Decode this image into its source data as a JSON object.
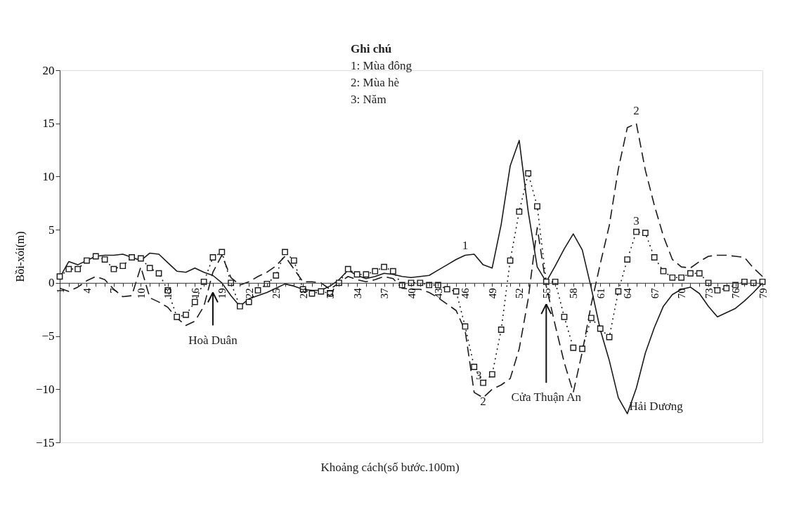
{
  "chart_data": {
    "type": "line",
    "xlabel": "Khoảng cách(số bước.100m)",
    "ylabel": "Bồi-xói(m)",
    "xlim": [
      1,
      79
    ],
    "ylim": [
      -15,
      20
    ],
    "yticks": [
      -15,
      -10,
      -5,
      0,
      5,
      10,
      15,
      20
    ],
    "xticks": [
      1,
      {
        "value": 2,
        "label": null
      },
      {
        "value": 3,
        "label": null
      },
      4,
      {
        "value": 5,
        "label": null
      },
      {
        "value": 6,
        "label": null
      },
      7,
      {
        "value": 8,
        "label": null
      },
      {
        "value": 9,
        "label": null
      },
      10,
      {
        "value": 11,
        "label": null
      },
      {
        "value": 12,
        "label": null
      },
      13,
      {
        "value": 14,
        "label": null
      },
      {
        "value": 15,
        "label": null
      },
      16,
      {
        "value": 17,
        "label": null
      },
      {
        "value": 18,
        "label": null
      },
      19,
      {
        "value": 20,
        "label": null
      },
      {
        "value": 21,
        "label": null
      },
      22,
      {
        "value": 23,
        "label": null
      },
      {
        "value": 24,
        "label": null
      },
      25,
      {
        "value": 26,
        "label": null
      },
      {
        "value": 27,
        "label": null
      },
      28,
      {
        "value": 29,
        "label": null
      },
      {
        "value": 30,
        "label": null
      },
      31,
      {
        "value": 32,
        "label": null
      },
      {
        "value": 33,
        "label": null
      },
      34,
      {
        "value": 35,
        "label": null
      },
      {
        "value": 36,
        "label": null
      },
      37,
      {
        "value": 38,
        "label": null
      },
      {
        "value": 39,
        "label": null
      },
      40,
      {
        "value": 41,
        "label": null
      },
      {
        "value": 42,
        "label": null
      },
      43,
      {
        "value": 44,
        "label": null
      },
      {
        "value": 45,
        "label": null
      },
      46,
      {
        "value": 47,
        "label": null
      },
      {
        "value": 48,
        "label": null
      },
      49,
      {
        "value": 50,
        "label": null
      },
      {
        "value": 51,
        "label": null
      },
      52,
      {
        "value": 53,
        "label": null
      },
      {
        "value": 54,
        "label": null
      },
      55,
      {
        "value": 56,
        "label": null
      },
      {
        "value": 57,
        "label": null
      },
      58,
      {
        "value": 59,
        "label": null
      },
      {
        "value": 60,
        "label": null
      },
      61,
      {
        "value": 62,
        "label": null
      },
      {
        "value": 63,
        "label": null
      },
      64,
      {
        "value": 65,
        "label": null
      },
      {
        "value": 66,
        "label": null
      },
      67,
      {
        "value": 68,
        "label": null
      },
      {
        "value": 69,
        "label": null
      },
      70,
      {
        "value": 71,
        "label": null
      },
      {
        "value": 72,
        "label": null
      },
      73,
      {
        "value": 74,
        "label": null
      },
      {
        "value": 75,
        "label": null
      },
      76,
      {
        "value": 77,
        "label": null
      },
      {
        "value": 78,
        "label": null
      },
      79
    ],
    "x": [
      1,
      2,
      3,
      4,
      5,
      6,
      7,
      8,
      9,
      10,
      11,
      12,
      13,
      14,
      15,
      16,
      17,
      18,
      19,
      20,
      21,
      22,
      23,
      24,
      25,
      26,
      27,
      28,
      29,
      30,
      31,
      32,
      33,
      34,
      35,
      36,
      37,
      38,
      39,
      40,
      41,
      42,
      43,
      44,
      45,
      46,
      47,
      48,
      49,
      50,
      51,
      52,
      53,
      54,
      55,
      56,
      57,
      58,
      59,
      60,
      61,
      62,
      63,
      64,
      65,
      66,
      67,
      68,
      69,
      70,
      71,
      72,
      73,
      74,
      75,
      76,
      77,
      78,
      79
    ],
    "series": [
      {
        "color": "#1a1a1a",
        "line_style": "solid",
        "values": [
          0.5,
          2.0,
          1.7,
          2.1,
          2.5,
          2.6,
          2.6,
          2.7,
          2.4,
          2.1,
          2.8,
          2.7,
          1.9,
          1.1,
          1.0,
          1.4,
          1.0,
          0.7,
          0.0,
          -1.2,
          -2.2,
          -1.5,
          -1.2,
          -0.9,
          -0.5,
          -0.1,
          -0.3,
          -0.6,
          -0.7,
          -0.7,
          -0.3,
          0.3,
          1.2,
          0.7,
          0.4,
          0.6,
          0.9,
          0.8,
          0.6,
          0.5,
          0.6,
          0.7,
          1.2,
          1.7,
          2.2,
          2.6,
          2.7,
          1.7,
          1.4,
          5.5,
          11.0,
          13.4,
          6.7,
          1.5,
          0.1,
          1.6,
          3.2,
          4.6,
          3.1,
          -0.5,
          -4.4,
          -7.3,
          -10.8,
          -12.3,
          -9.9,
          -6.6,
          -4.2,
          -2.2,
          -1.1,
          -0.6,
          -0.4,
          -1.0,
          -2.2,
          -3.2,
          -2.8,
          -2.4,
          -1.7,
          -0.9,
          0.0
        ]
      },
      {
        "color": "#1a1a1a",
        "line_style": "dashed",
        "values": [
          -0.5,
          -0.8,
          -0.4,
          0.2,
          0.6,
          0.3,
          -0.6,
          -1.3,
          -1.2,
          1.5,
          -1.4,
          -1.8,
          -2.3,
          -3.3,
          -4.0,
          -3.6,
          -2.2,
          1.0,
          2.6,
          0.5,
          -0.2,
          0.1,
          0.6,
          1.0,
          1.6,
          2.5,
          1.3,
          0.1,
          0.1,
          0.0,
          -0.6,
          0.0,
          0.6,
          0.3,
          0.1,
          0.3,
          0.6,
          0.4,
          -0.5,
          -0.6,
          -0.6,
          -0.9,
          -1.4,
          -2.0,
          -2.6,
          -4.5,
          -10.3,
          -10.8,
          -10.0,
          -9.6,
          -9.0,
          -6.2,
          -1.5,
          5.2,
          -0.3,
          -4.0,
          -7.5,
          -10.3,
          -6.5,
          -2.0,
          1.8,
          5.4,
          10.7,
          14.6,
          15.0,
          10.6,
          7.3,
          4.4,
          2.2,
          1.5,
          1.4,
          2.0,
          2.5,
          2.6,
          2.6,
          2.5,
          2.4,
          1.4,
          0.6
        ]
      },
      {
        "color": "#1a1a1a",
        "line_style": "dotted",
        "marker": "square",
        "values": [
          0.6,
          1.3,
          1.3,
          2.1,
          2.5,
          2.2,
          1.3,
          1.6,
          2.4,
          2.3,
          1.4,
          0.9,
          -0.7,
          -3.2,
          -3.0,
          -1.8,
          0.1,
          2.4,
          2.9,
          0.0,
          -2.2,
          -1.8,
          -0.7,
          -0.1,
          0.7,
          2.9,
          2.1,
          -0.6,
          -1.0,
          -0.8,
          -1.0,
          0.0,
          1.3,
          0.8,
          0.8,
          1.1,
          1.5,
          1.1,
          -0.2,
          0.0,
          0.0,
          -0.2,
          -0.2,
          -0.6,
          -0.8,
          -4.1,
          -7.9,
          -9.4,
          -8.6,
          -4.4,
          2.1,
          6.7,
          10.3,
          7.2,
          0.1,
          0.1,
          -3.2,
          -6.1,
          -6.2,
          -3.3,
          -4.3,
          -5.1,
          -0.8,
          2.2,
          4.8,
          4.7,
          2.4,
          1.1,
          0.5,
          0.5,
          0.9,
          0.9,
          0.0,
          -0.7,
          -0.5,
          -0.2,
          0.1,
          0.0,
          0.1
        ]
      }
    ],
    "annotations": [
      "Ghi chú",
      "1: Mùa đông",
      "2: Mùa hè",
      "3: Năm",
      "1",
      "2",
      "3",
      "2",
      "3",
      "Hoà Duân",
      {
        "text": "Cửa Thuận An",
        "x": 55,
        "y": -2.0
      },
      "Hải Dương"
    ]
  }
}
